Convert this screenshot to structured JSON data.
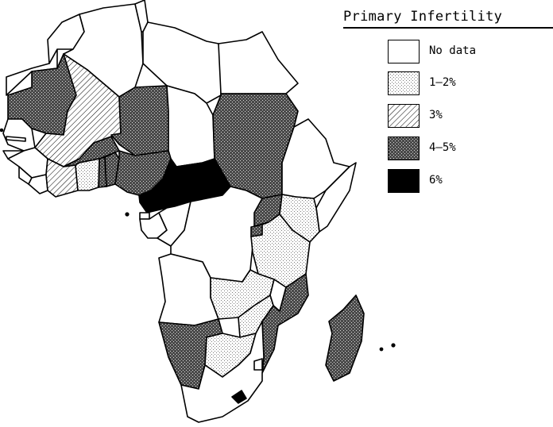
{
  "legend": {
    "title": "Primary Infertility",
    "items": [
      {
        "label": "No data",
        "fill": "nodata"
      },
      {
        "label": "1–2%",
        "fill": "light"
      },
      {
        "label": "3%",
        "fill": "hatch"
      },
      {
        "label": "4–5%",
        "fill": "dark"
      },
      {
        "label": "6%",
        "fill": "black"
      }
    ]
  },
  "colors": {
    "outline": "#000000",
    "nodata": "#ffffff",
    "light": "#eeeeee",
    "dark": "#6f6f6f",
    "black": "#000000"
  }
}
